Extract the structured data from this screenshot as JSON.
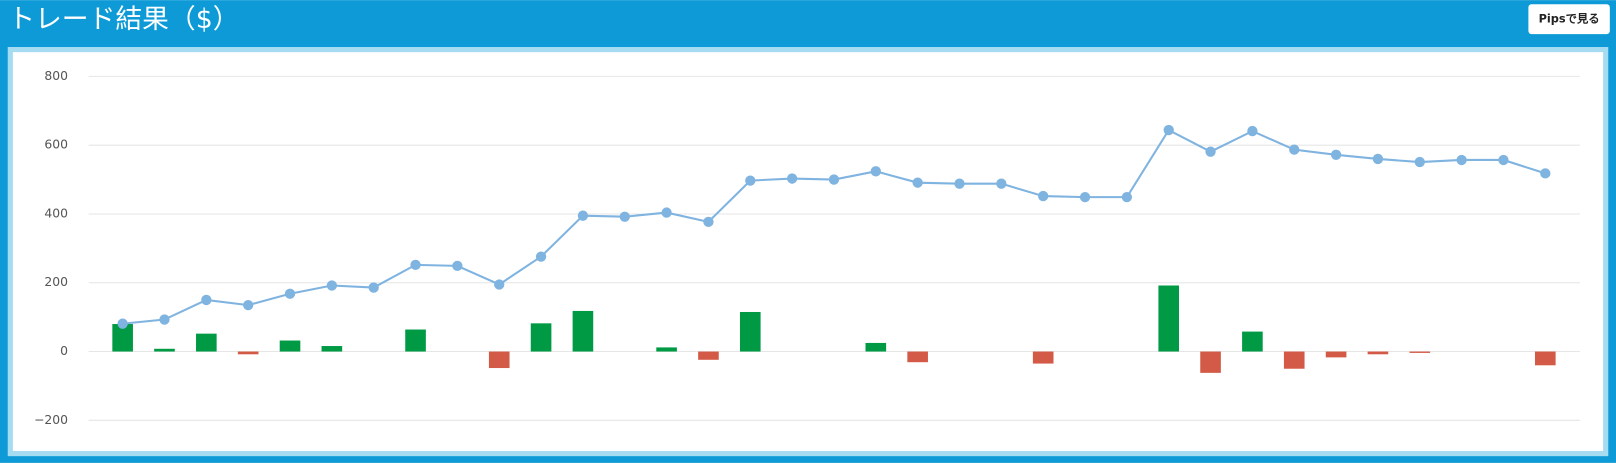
{
  "header": {
    "title": "トレード結果（$）",
    "button": "Pipsで見る"
  },
  "chart_data": {
    "type": "combo",
    "ylim": [
      -250,
      800
    ],
    "yticks": [
      {
        "value": -200,
        "label": "−200"
      },
      0,
      200,
      400,
      600,
      800
    ],
    "grid": true,
    "series": [
      {
        "type": "bar",
        "positive_color": "#009a44",
        "negative_color": "#d35a47",
        "values": [
          80,
          8,
          52,
          -8,
          32,
          16,
          0,
          64,
          0,
          -48,
          82,
          118,
          0,
          12,
          -24,
          115,
          0,
          0,
          25,
          -31,
          0,
          0,
          -35,
          0,
          0,
          192,
          -62,
          58,
          -50,
          -17,
          -8,
          -4,
          0,
          0,
          -40
        ]
      },
      {
        "type": "line",
        "color": "#7fb3e0",
        "values": [
          81,
          93,
          150,
          135,
          168,
          192,
          186,
          252,
          249,
          195,
          276,
          395,
          392,
          404,
          377,
          497,
          503,
          500,
          524,
          491,
          488,
          488,
          452,
          449,
          449,
          644,
          581,
          641,
          587,
          572,
          560,
          551,
          557,
          557,
          518
        ]
      }
    ]
  }
}
